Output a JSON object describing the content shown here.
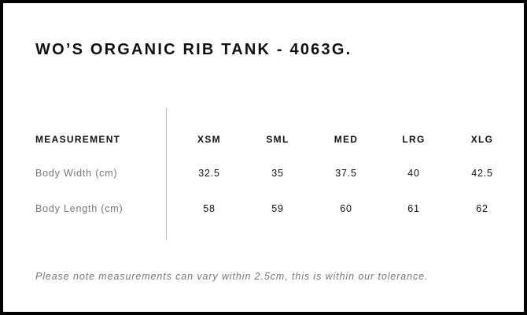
{
  "title": "WO’S ORGANIC RIB TANK - 4063G.",
  "table": {
    "header": {
      "label": "MEASUREMENT",
      "sizes": [
        "XSM",
        "SML",
        "MED",
        "LRG",
        "XLG"
      ]
    },
    "rows": [
      {
        "label": "Body Width (cm)",
        "values": [
          "32.5",
          "35",
          "37.5",
          "40",
          "42.5"
        ]
      },
      {
        "label": "Body Length (cm)",
        "values": [
          "58",
          "59",
          "60",
          "61",
          "62"
        ]
      }
    ]
  },
  "note": "Please note measurements can vary within 2.5cm, this is within our tolerance."
}
